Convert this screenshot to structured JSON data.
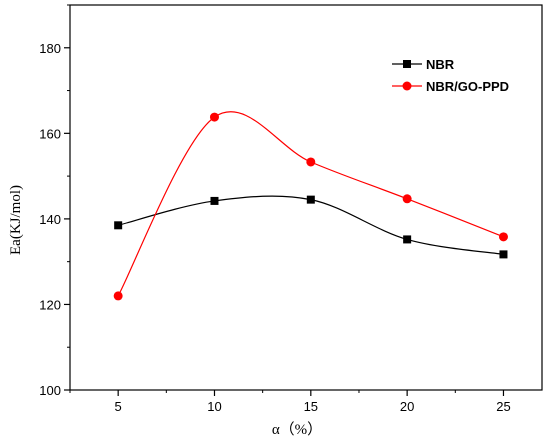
{
  "chart_data": {
    "type": "line",
    "title": "",
    "xlabel": "α（%）",
    "ylabel": "Ea(KJ/mol)",
    "x": [
      5,
      10,
      15,
      20,
      25
    ],
    "x_ticks": [
      "5",
      "10",
      "15",
      "20",
      "25"
    ],
    "y_ticks": [
      "100",
      "120",
      "140",
      "160",
      "180"
    ],
    "xlim": [
      2.5,
      27
    ],
    "ylim": [
      100,
      190
    ],
    "grid": false,
    "legend_position": "top-right",
    "series": [
      {
        "name": "NBR",
        "values": [
          138.5,
          144.2,
          144.5,
          135.2,
          131.7
        ],
        "color": "#000000",
        "marker": "square"
      },
      {
        "name": "NBR/GO-PPD",
        "values": [
          122.0,
          163.8,
          153.3,
          144.7,
          135.8
        ],
        "color": "#ff0000",
        "marker": "circle"
      }
    ]
  }
}
